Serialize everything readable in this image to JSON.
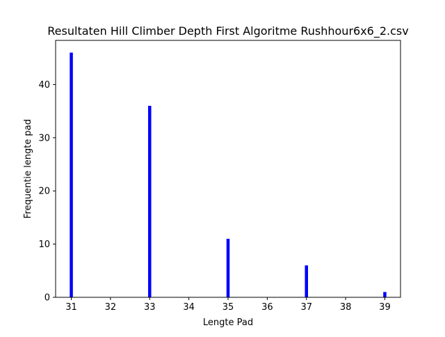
{
  "chart_data": {
    "type": "bar",
    "title": "Resultaten Hill Climber Depth First Algoritme Rushhour6x6_2.csv",
    "xlabel": "Lengte Pad",
    "ylabel": "Frequentie lengte pad",
    "x": [
      31,
      33,
      35,
      37,
      39
    ],
    "values": [
      46,
      36,
      11,
      6,
      1
    ],
    "bar_color": "#0000ff",
    "xlim": [
      30.6,
      39.4
    ],
    "ylim": [
      0,
      48.3
    ],
    "xticks": [
      31,
      32,
      33,
      34,
      35,
      36,
      37,
      38,
      39
    ],
    "yticks": [
      0,
      10,
      20,
      30,
      40
    ],
    "grid": false,
    "legend": "none"
  }
}
